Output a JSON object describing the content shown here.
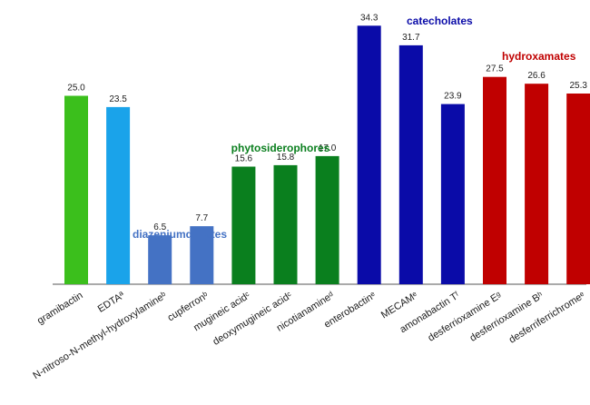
{
  "chart_data": {
    "type": "bar",
    "categories": [
      "gramibactin",
      "EDTAª",
      "N-nitroso-N-methyl-hydroxylamineᵇ",
      "cupferronᵇ",
      "mugineic acidᶜ",
      "deoxymugineic acidᶜ",
      "nicotianamineᵈ",
      "enterobactinᵉ",
      "MECAMᵉ",
      "amonabactin Tᶠ",
      "desferrioxamine Eᵍ",
      "desferrioxamine Bʰ",
      "desferriferrichromeᵉ"
    ],
    "values": [
      25.0,
      23.5,
      6.5,
      7.7,
      15.6,
      15.8,
      17.0,
      34.3,
      31.7,
      23.9,
      27.5,
      26.6,
      25.3
    ],
    "value_labels": [
      "25.0",
      "23.5",
      "6.5",
      "7.7",
      "15.6",
      "15.8",
      "17.0",
      "34.3",
      "31.7",
      "23.9",
      "27.5",
      "26.6",
      "25.3"
    ],
    "bar_colors": [
      "#3bbf1c",
      "#1aa3ea",
      "#4472c4",
      "#4472c4",
      "#0a7f1e",
      "#0a7f1e",
      "#0a7f1e",
      "#0a0ba8",
      "#0a0ba8",
      "#0a0ba8",
      "#c00000",
      "#c00000",
      "#c00000"
    ],
    "groups": [
      {
        "label": "diazeniumdiolates",
        "color": "#4472c4"
      },
      {
        "label": "phytosiderophores",
        "color": "#0a7f1e"
      },
      {
        "label": "catecholates",
        "color": "#0a0ba8"
      },
      {
        "label": "hydroxamates",
        "color": "#c00000"
      }
    ],
    "ylim": [
      0,
      36
    ],
    "grid": false,
    "legend": "none",
    "axis_color": "#555555"
  }
}
